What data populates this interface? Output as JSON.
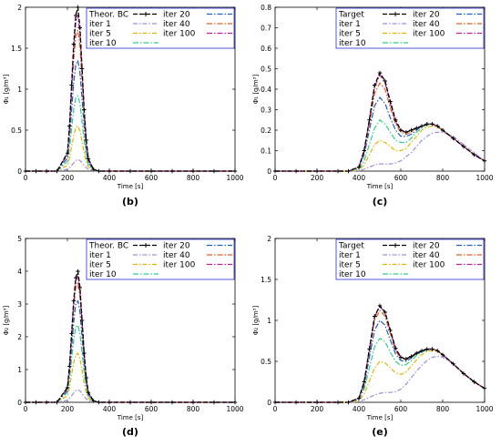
{
  "chart_data": [
    {
      "type": "line",
      "panel_label": "(b)",
      "xlabel": "Time [s]",
      "ylabel": "Φ₁ [g/m³]",
      "xlim": [
        0,
        1000
      ],
      "ylim": [
        0,
        2
      ],
      "yticks": [
        0,
        0.5,
        1,
        1.5,
        2
      ],
      "yticklabels": [
        "0",
        "0.5",
        "1",
        "1.5",
        "2"
      ],
      "xticks": [
        0,
        200,
        400,
        600,
        800,
        1000
      ],
      "xticklabels": [
        "0",
        "200",
        "400",
        "600",
        "800",
        "1000"
      ],
      "x": [
        0,
        50,
        100,
        150,
        200,
        210,
        220,
        230,
        240,
        250,
        260,
        270,
        280,
        290,
        300,
        325,
        350,
        400,
        500,
        600,
        700,
        800,
        900,
        1000
      ],
      "grid": false,
      "legend_position": "top",
      "series": [
        {
          "name": "Theor. BC",
          "color": "#000000",
          "values": [
            0,
            0,
            0,
            0,
            0.22,
            0.55,
            1.05,
            1.55,
            1.9,
            2.0,
            1.75,
            1.25,
            0.75,
            0.38,
            0.15,
            0.02,
            0,
            0,
            0,
            0,
            0,
            0,
            0,
            0
          ]
        },
        {
          "name": "iter 1",
          "color": "#a18de0",
          "values": [
            0,
            0,
            0,
            0,
            0.02,
            0.04,
            0.07,
            0.1,
            0.13,
            0.14,
            0.13,
            0.1,
            0.07,
            0.04,
            0.02,
            0.005,
            0,
            0,
            0,
            0,
            0,
            0,
            0,
            0
          ]
        },
        {
          "name": "iter 5",
          "color": "#e2b600",
          "values": [
            0,
            0,
            0,
            0,
            0.07,
            0.16,
            0.3,
            0.43,
            0.53,
            0.55,
            0.49,
            0.36,
            0.22,
            0.11,
            0.05,
            0.01,
            0,
            0,
            0,
            0,
            0,
            0,
            0,
            0
          ]
        },
        {
          "name": "iter 10",
          "color": "#2ecf8c",
          "values": [
            0,
            0,
            0,
            0,
            0.12,
            0.28,
            0.52,
            0.75,
            0.9,
            0.92,
            0.82,
            0.6,
            0.37,
            0.18,
            0.08,
            0.01,
            0,
            0,
            0,
            0,
            0,
            0,
            0,
            0
          ]
        },
        {
          "name": "iter 20",
          "color": "#1a5fcc",
          "values": [
            0,
            0,
            0,
            0,
            0.16,
            0.4,
            0.74,
            1.08,
            1.3,
            1.35,
            1.2,
            0.88,
            0.53,
            0.26,
            0.1,
            0.02,
            0,
            0,
            0,
            0,
            0,
            0,
            0,
            0
          ]
        },
        {
          "name": "iter 40",
          "color": "#e0601a",
          "values": [
            0,
            0,
            0,
            0,
            0.2,
            0.5,
            0.93,
            1.36,
            1.65,
            1.72,
            1.52,
            1.1,
            0.66,
            0.32,
            0.13,
            0.02,
            0,
            0,
            0,
            0,
            0,
            0,
            0,
            0
          ]
        },
        {
          "name": "iter 100",
          "color": "#c21f9e",
          "values": [
            0,
            0,
            0,
            0,
            0.21,
            0.53,
            1.0,
            1.48,
            1.82,
            1.9,
            1.67,
            1.2,
            0.72,
            0.36,
            0.14,
            0.02,
            0,
            0,
            0,
            0,
            0,
            0,
            0,
            0
          ]
        }
      ]
    },
    {
      "type": "line",
      "panel_label": "(c)",
      "xlabel": "Time [s]",
      "ylabel": "Φ₁ [g/m³]",
      "xlim": [
        0,
        1000
      ],
      "ylim": [
        0,
        0.8
      ],
      "yticks": [
        0,
        0.1,
        0.2,
        0.3,
        0.4,
        0.5,
        0.6,
        0.7,
        0.8
      ],
      "yticklabels": [
        "0",
        "0.1",
        "0.2",
        "0.3",
        "0.4",
        "0.5",
        "0.6",
        "0.7",
        "0.8"
      ],
      "xticks": [
        0,
        200,
        400,
        600,
        800,
        1000
      ],
      "xticklabels": [
        "0",
        "200",
        "400",
        "600",
        "800",
        "1000"
      ],
      "x": [
        0,
        100,
        200,
        300,
        350,
        400,
        425,
        450,
        475,
        500,
        525,
        550,
        575,
        600,
        625,
        650,
        675,
        700,
        725,
        750,
        775,
        800,
        850,
        900,
        950,
        1000
      ],
      "grid": false,
      "legend_position": "top",
      "series": [
        {
          "name": "Target",
          "color": "#000000",
          "values": [
            0,
            0,
            0,
            0,
            0,
            0.02,
            0.1,
            0.25,
            0.42,
            0.48,
            0.44,
            0.34,
            0.25,
            0.2,
            0.19,
            0.2,
            0.21,
            0.22,
            0.23,
            0.23,
            0.22,
            0.2,
            0.16,
            0.12,
            0.08,
            0.05
          ]
        },
        {
          "name": "iter 1",
          "color": "#a18de0",
          "values": [
            0,
            0,
            0,
            0,
            0,
            0,
            0.01,
            0.02,
            0.03,
            0.035,
            0.035,
            0.035,
            0.04,
            0.05,
            0.07,
            0.09,
            0.12,
            0.15,
            0.17,
            0.185,
            0.19,
            0.19,
            0.17,
            0.13,
            0.09,
            0.05
          ]
        },
        {
          "name": "iter 5",
          "color": "#e2b600",
          "values": [
            0,
            0,
            0,
            0,
            0,
            0.005,
            0.03,
            0.08,
            0.13,
            0.15,
            0.14,
            0.12,
            0.1,
            0.1,
            0.11,
            0.14,
            0.17,
            0.2,
            0.215,
            0.22,
            0.215,
            0.2,
            0.16,
            0.12,
            0.08,
            0.05
          ]
        },
        {
          "name": "iter 10",
          "color": "#2ecf8c",
          "values": [
            0,
            0,
            0,
            0,
            0,
            0.01,
            0.05,
            0.13,
            0.21,
            0.25,
            0.23,
            0.19,
            0.15,
            0.14,
            0.14,
            0.16,
            0.19,
            0.21,
            0.225,
            0.23,
            0.22,
            0.2,
            0.16,
            0.12,
            0.08,
            0.05
          ]
        },
        {
          "name": "iter 20",
          "color": "#1a5fcc",
          "values": [
            0,
            0,
            0,
            0,
            0,
            0.015,
            0.08,
            0.2,
            0.32,
            0.36,
            0.33,
            0.26,
            0.2,
            0.17,
            0.17,
            0.18,
            0.2,
            0.22,
            0.23,
            0.23,
            0.22,
            0.2,
            0.16,
            0.12,
            0.08,
            0.05
          ]
        },
        {
          "name": "iter 40",
          "color": "#e0601a",
          "values": [
            0,
            0,
            0,
            0,
            0,
            0.02,
            0.09,
            0.23,
            0.38,
            0.43,
            0.4,
            0.31,
            0.23,
            0.19,
            0.18,
            0.19,
            0.21,
            0.22,
            0.23,
            0.23,
            0.22,
            0.2,
            0.16,
            0.12,
            0.08,
            0.05
          ]
        },
        {
          "name": "iter 100",
          "color": "#c21f9e",
          "values": [
            0,
            0,
            0,
            0,
            0,
            0.02,
            0.1,
            0.25,
            0.41,
            0.47,
            0.43,
            0.33,
            0.24,
            0.2,
            0.19,
            0.2,
            0.21,
            0.22,
            0.23,
            0.23,
            0.22,
            0.2,
            0.16,
            0.12,
            0.08,
            0.05
          ]
        }
      ]
    },
    {
      "type": "line",
      "panel_label": "(d)",
      "xlabel": "Time [s]",
      "ylabel": "Φ₂ [g/m³]",
      "xlim": [
        0,
        1000
      ],
      "ylim": [
        0,
        5
      ],
      "yticks": [
        0,
        1,
        2,
        3,
        4,
        5
      ],
      "yticklabels": [
        "0",
        "1",
        "2",
        "3",
        "4",
        "5"
      ],
      "xticks": [
        0,
        200,
        400,
        600,
        800,
        1000
      ],
      "xticklabels": [
        "0",
        "200",
        "400",
        "600",
        "800",
        "1000"
      ],
      "x": [
        0,
        50,
        100,
        150,
        200,
        210,
        220,
        230,
        240,
        250,
        260,
        270,
        280,
        290,
        300,
        325,
        350,
        400,
        500,
        600,
        700,
        800,
        900,
        1000
      ],
      "grid": false,
      "legend_position": "top",
      "series": [
        {
          "name": "Theor. BC",
          "color": "#000000",
          "values": [
            0,
            0,
            0,
            0,
            0.45,
            1.1,
            2.1,
            3.1,
            3.8,
            4.0,
            3.5,
            2.5,
            1.5,
            0.75,
            0.3,
            0.04,
            0,
            0,
            0,
            0,
            0,
            0,
            0,
            0
          ]
        },
        {
          "name": "iter 1",
          "color": "#a18de0",
          "values": [
            0,
            0,
            0,
            0,
            0.06,
            0.12,
            0.2,
            0.29,
            0.36,
            0.38,
            0.35,
            0.27,
            0.18,
            0.1,
            0.05,
            0.01,
            0,
            0,
            0,
            0,
            0,
            0,
            0,
            0
          ]
        },
        {
          "name": "iter 5",
          "color": "#e2b600",
          "values": [
            0,
            0,
            0,
            0,
            0.2,
            0.45,
            0.85,
            1.2,
            1.45,
            1.5,
            1.33,
            0.96,
            0.58,
            0.29,
            0.12,
            0.02,
            0,
            0,
            0,
            0,
            0,
            0,
            0,
            0
          ]
        },
        {
          "name": "iter 10",
          "color": "#2ecf8c",
          "values": [
            0,
            0,
            0,
            0,
            0.3,
            0.7,
            1.32,
            1.9,
            2.3,
            2.35,
            2.08,
            1.5,
            0.9,
            0.45,
            0.18,
            0.03,
            0,
            0,
            0,
            0,
            0,
            0,
            0,
            0
          ]
        },
        {
          "name": "iter 20",
          "color": "#1a5fcc",
          "values": [
            0,
            0,
            0,
            0,
            0.36,
            0.88,
            1.65,
            2.45,
            3.0,
            3.1,
            2.75,
            1.98,
            1.18,
            0.6,
            0.23,
            0.03,
            0,
            0,
            0,
            0,
            0,
            0,
            0,
            0
          ]
        },
        {
          "name": "iter 40",
          "color": "#e0601a",
          "values": [
            0,
            0,
            0,
            0,
            0.42,
            1.02,
            1.95,
            2.88,
            3.52,
            3.65,
            3.22,
            2.32,
            1.38,
            0.7,
            0.27,
            0.04,
            0,
            0,
            0,
            0,
            0,
            0,
            0,
            0
          ]
        },
        {
          "name": "iter 100",
          "color": "#c21f9e",
          "values": [
            0,
            0,
            0,
            0,
            0.44,
            1.08,
            2.05,
            3.02,
            3.7,
            3.85,
            3.38,
            2.44,
            1.45,
            0.73,
            0.29,
            0.04,
            0,
            0,
            0,
            0,
            0,
            0,
            0,
            0
          ]
        }
      ]
    },
    {
      "type": "line",
      "panel_label": "(e)",
      "xlabel": "Time [s]",
      "ylabel": "Φ₂ [g/m³]",
      "xlim": [
        0,
        1000
      ],
      "ylim": [
        0,
        2
      ],
      "yticks": [
        0,
        0.5,
        1,
        1.5,
        2
      ],
      "yticklabels": [
        "0",
        "0.5",
        "1",
        "1.5",
        "2"
      ],
      "xticks": [
        0,
        200,
        400,
        600,
        800,
        1000
      ],
      "xticklabels": [
        "0",
        "200",
        "400",
        "600",
        "800",
        "1000"
      ],
      "x": [
        0,
        100,
        200,
        300,
        350,
        400,
        425,
        450,
        475,
        500,
        525,
        550,
        575,
        600,
        625,
        650,
        675,
        700,
        725,
        750,
        775,
        800,
        850,
        900,
        950,
        1000
      ],
      "grid": false,
      "legend_position": "top",
      "series": [
        {
          "name": "Target",
          "color": "#000000",
          "values": [
            0,
            0,
            0,
            0,
            0,
            0.05,
            0.25,
            0.65,
            1.05,
            1.18,
            1.1,
            0.88,
            0.66,
            0.55,
            0.53,
            0.56,
            0.6,
            0.63,
            0.65,
            0.65,
            0.63,
            0.58,
            0.47,
            0.35,
            0.25,
            0.17
          ]
        },
        {
          "name": "iter 1",
          "color": "#a18de0",
          "values": [
            0,
            0,
            0,
            0,
            0,
            0.01,
            0.03,
            0.06,
            0.09,
            0.11,
            0.12,
            0.12,
            0.13,
            0.16,
            0.22,
            0.3,
            0.38,
            0.45,
            0.51,
            0.55,
            0.56,
            0.55,
            0.47,
            0.35,
            0.25,
            0.17
          ]
        },
        {
          "name": "iter 5",
          "color": "#e2b600",
          "values": [
            0,
            0,
            0,
            0,
            0,
            0.02,
            0.1,
            0.26,
            0.42,
            0.5,
            0.48,
            0.42,
            0.36,
            0.34,
            0.37,
            0.44,
            0.52,
            0.58,
            0.62,
            0.63,
            0.62,
            0.58,
            0.47,
            0.35,
            0.25,
            0.17
          ]
        },
        {
          "name": "iter 10",
          "color": "#2ecf8c",
          "values": [
            0,
            0,
            0,
            0,
            0,
            0.03,
            0.16,
            0.42,
            0.68,
            0.78,
            0.74,
            0.61,
            0.5,
            0.45,
            0.46,
            0.51,
            0.57,
            0.61,
            0.64,
            0.65,
            0.63,
            0.58,
            0.47,
            0.35,
            0.25,
            0.17
          ]
        },
        {
          "name": "iter 20",
          "color": "#1a5fcc",
          "values": [
            0,
            0,
            0,
            0,
            0,
            0.04,
            0.2,
            0.55,
            0.88,
            1.0,
            0.94,
            0.76,
            0.59,
            0.51,
            0.5,
            0.54,
            0.59,
            0.62,
            0.64,
            0.65,
            0.63,
            0.58,
            0.47,
            0.35,
            0.25,
            0.17
          ]
        },
        {
          "name": "iter 40",
          "color": "#e0601a",
          "values": [
            0,
            0,
            0,
            0,
            0,
            0.05,
            0.23,
            0.62,
            1.0,
            1.12,
            1.05,
            0.84,
            0.63,
            0.54,
            0.52,
            0.55,
            0.6,
            0.63,
            0.65,
            0.65,
            0.63,
            0.58,
            0.47,
            0.35,
            0.25,
            0.17
          ]
        },
        {
          "name": "iter 100",
          "color": "#c21f9e",
          "values": [
            0,
            0,
            0,
            0,
            0,
            0.05,
            0.25,
            0.65,
            1.04,
            1.17,
            1.09,
            0.87,
            0.65,
            0.55,
            0.53,
            0.56,
            0.6,
            0.63,
            0.65,
            0.65,
            0.63,
            0.58,
            0.47,
            0.35,
            0.25,
            0.17
          ]
        }
      ]
    }
  ]
}
